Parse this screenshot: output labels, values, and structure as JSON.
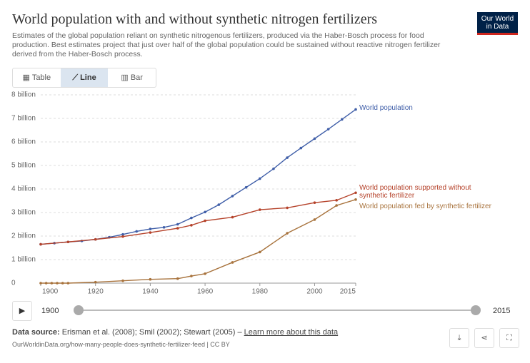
{
  "chart_data": {
    "type": "line",
    "title": "World population with and without synthetic nitrogen fertilizers",
    "subtitle": "Estimates of the global population reliant on synthetic nitrogenous fertilizers, produced via the Haber-Bosch process for food production. Best estimates project that just over half of the global population could be sustained without reactive nitrogen fertilizer derived from the Haber-Bosch process.",
    "xlim": [
      1900,
      2015
    ],
    "xticks": [
      1900,
      1920,
      1940,
      1960,
      1980,
      2000,
      2015
    ],
    "ylim": [
      0,
      8
    ],
    "yticks": [
      0,
      {
        "value": 1,
        "label": "1 billion"
      },
      {
        "value": 2,
        "label": "2 billion"
      },
      {
        "value": 3,
        "label": "3 billion"
      },
      {
        "value": 4,
        "label": "4 billion"
      },
      {
        "value": 5,
        "label": "5 billion"
      },
      {
        "value": 6,
        "label": "6 billion"
      },
      {
        "value": 7,
        "label": "7 billion"
      },
      {
        "value": 8,
        "label": "8 billion"
      }
    ],
    "grid": true,
    "series": [
      {
        "name": "World population",
        "color": "#3f5ea8",
        "x": [
          1900,
          1905,
          1910,
          1915,
          1920,
          1925,
          1930,
          1935,
          1940,
          1945,
          1950,
          1955,
          1960,
          1965,
          1970,
          1975,
          1980,
          1985,
          1990,
          1995,
          2000,
          2005,
          2010,
          2015
        ],
        "values": [
          1.65,
          1.7,
          1.75,
          1.79,
          1.86,
          1.95,
          2.07,
          2.2,
          2.3,
          2.37,
          2.5,
          2.77,
          3.02,
          3.33,
          3.7,
          4.07,
          4.44,
          4.86,
          5.33,
          5.74,
          6.14,
          6.54,
          6.96,
          7.38
        ]
      },
      {
        "name": "World population supported without synthetic fertilizer",
        "color": "#b5422a",
        "x": [
          1900,
          1910,
          1920,
          1930,
          1940,
          1950,
          1955,
          1960,
          1970,
          1980,
          1990,
          2000,
          2008,
          2015
        ],
        "values": [
          1.65,
          1.75,
          1.86,
          1.98,
          2.15,
          2.33,
          2.46,
          2.65,
          2.8,
          3.12,
          3.2,
          3.42,
          3.52,
          3.84
        ]
      },
      {
        "name": "World population fed by synthetic fertilizer",
        "color": "#a8733d",
        "x": [
          1900,
          1902,
          1904,
          1906,
          1908,
          1910,
          1920,
          1930,
          1940,
          1950,
          1955,
          1960,
          1970,
          1980,
          1990,
          2000,
          2008,
          2015
        ],
        "values": [
          0,
          0,
          0,
          0,
          0,
          0,
          0.04,
          0.1,
          0.16,
          0.19,
          0.3,
          0.4,
          0.88,
          1.32,
          2.12,
          2.7,
          3.3,
          3.55
        ]
      }
    ]
  },
  "ui": {
    "logo": [
      "Our World",
      "in Data"
    ],
    "tabs": [
      "Table",
      "Line",
      "Bar"
    ],
    "timeline": [
      1900,
      2015
    ],
    "source_label": "Data source:",
    "sources": "Erisman et al. (2008); Smil (2002); Stewart (2005) –",
    "learn_more": "Learn more about this data",
    "url": "OurWorldinData.org/how-many-people-does-synthetic-fertilizer-feed | CC BY"
  }
}
